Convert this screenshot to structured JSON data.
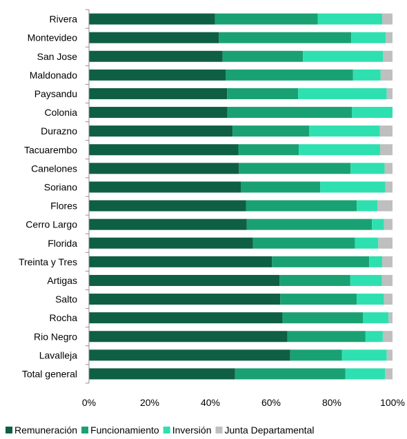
{
  "chart_data": {
    "type": "bar",
    "orientation": "horizontal",
    "stacked": "percent",
    "categories": [
      "Rivera",
      "Montevideo",
      "San Jose",
      "Maldonado",
      "Paysandu",
      "Colonia",
      "Durazno",
      "Tacuarembo",
      "Canelones",
      "Soriano",
      "Flores",
      "Cerro Largo",
      "Florida",
      "Treinta y Tres",
      "Artigas",
      "Salto",
      "Rocha",
      "Rio Negro",
      "Lavalleja",
      "Total general"
    ],
    "series": [
      {
        "name": "Remuneración",
        "color": "#0e5f43",
        "values": [
          41.5,
          42.8,
          44.0,
          45.0,
          45.5,
          45.6,
          47.3,
          49.2,
          49.4,
          50.0,
          51.7,
          52.0,
          54.0,
          60.3,
          62.8,
          63.0,
          63.8,
          65.4,
          66.3,
          48.1
        ]
      },
      {
        "name": "Funcionamiento",
        "color": "#1aa173",
        "values": [
          33.9,
          43.6,
          26.5,
          42.0,
          23.4,
          41.0,
          25.2,
          19.9,
          36.8,
          26.2,
          36.5,
          41.2,
          33.6,
          32.0,
          23.3,
          25.2,
          26.5,
          25.7,
          17.0,
          36.4
        ]
      },
      {
        "name": "Inversión",
        "color": "#2ee0b0",
        "values": [
          21.2,
          11.4,
          26.4,
          9.1,
          29.2,
          13.4,
          23.3,
          26.8,
          11.2,
          21.4,
          6.8,
          4.0,
          7.7,
          4.3,
          10.4,
          9.0,
          8.4,
          5.7,
          14.8,
          13.0
        ]
      },
      {
        "name": "Junta Departamental",
        "color": "#bfbfbf",
        "values": [
          3.4,
          2.2,
          3.1,
          3.9,
          1.9,
          0.0,
          4.2,
          4.1,
          2.6,
          2.4,
          5.0,
          2.8,
          4.7,
          3.4,
          3.5,
          2.8,
          1.3,
          3.2,
          1.9,
          2.5
        ]
      }
    ],
    "xlim": [
      0,
      100
    ],
    "x_ticks": [
      "0%",
      "20%",
      "40%",
      "60%",
      "80%",
      "100%"
    ],
    "grid": false,
    "legend_position": "bottom"
  }
}
